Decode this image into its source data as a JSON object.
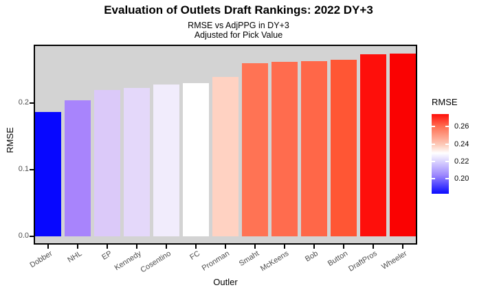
{
  "title": "Evaluation of Outlets Draft Rankings: 2022 DY+3",
  "subtitle_line1": "RMSE vs AdjPPG in DY+3",
  "subtitle_line2": "Adjusted for Pick Value",
  "colors": {
    "panel_background": "#D3D3D3",
    "panel_border": "#000000",
    "axis_text": "#4D4D4D",
    "title_text": "#000000"
  },
  "chart_data": {
    "type": "bar",
    "title": "Evaluation of Outlets Draft Rankings: 2022 DY+3",
    "subtitle": [
      "RMSE vs AdjPPG in DY+3",
      "Adjusted for Pick Value"
    ],
    "xlabel": "Outler",
    "ylabel": "RMSE",
    "categories": [
      "Dobber",
      "NHL",
      "EP",
      "Kennedy",
      "Cosentino",
      "FC",
      "Pronman",
      "Smaht",
      "McKeens",
      "Bob",
      "Button",
      "DraftPros",
      "Wheeler"
    ],
    "values": [
      0.187,
      0.204,
      0.22,
      0.223,
      0.228,
      0.23,
      0.239,
      0.26,
      0.262,
      0.263,
      0.265,
      0.273,
      0.274
    ],
    "bar_colors": [
      "#0707FF",
      "#A884FC",
      "#DBC9F9",
      "#E4D8FA",
      "#F1ECFC",
      "#FFFFFF",
      "#FFD2C2",
      "#FF7354",
      "#FF6C4E",
      "#FF6748",
      "#FF5634",
      "#FE0F0B",
      "#FA0202"
    ],
    "ylim": [
      0,
      0.288
    ],
    "yticks": [
      0.0,
      0.1,
      0.2
    ],
    "ytick_labels": [
      "0.0",
      "0.1",
      "0.2"
    ],
    "grid": false,
    "legend": {
      "title": "RMSE",
      "position": "right",
      "type": "colorbar",
      "range": [
        0.183,
        0.2745
      ],
      "tick_values": [
        0.26,
        0.24,
        0.22,
        0.2
      ],
      "tick_labels": [
        "0.26",
        "0.24",
        "0.22",
        "0.20"
      ],
      "gradient_stops_top_to_bottom": [
        {
          "pos": 0,
          "color": "#FF0F0A"
        },
        {
          "pos": 16,
          "color": "#FF7154"
        },
        {
          "pos": 39,
          "color": "#FDCDBC"
        },
        {
          "pos": 49,
          "color": "#FFFFFF"
        },
        {
          "pos": 77,
          "color": "#9B86FD"
        },
        {
          "pos": 100,
          "color": "#0A0AFF"
        }
      ]
    }
  }
}
